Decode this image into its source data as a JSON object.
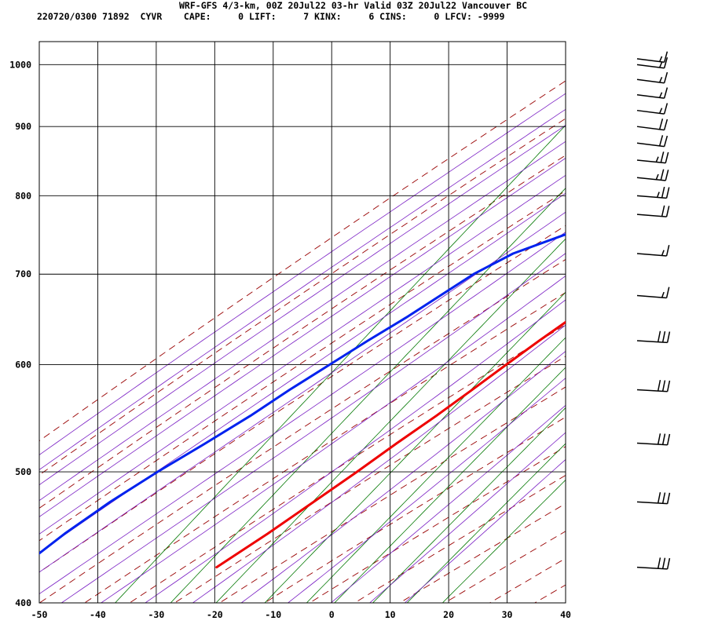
{
  "header": {
    "title": "WRF-GFS 4/3-km, 00Z 20Jul22 03-hr Valid 03Z 20Jul22 Vancouver BC",
    "subtitle": "220720/0300 71892  CYVR    CAPE:     0 LIFT:     7 KINX:     6 CINS:     0 LFCV: -9999"
  },
  "colors": {
    "temperature": "#ee0000",
    "dewpoint": "#0022ee",
    "isotherm_grid": "#000000",
    "dry_adiabat": "#990000",
    "moist_adiabat": "#7a1fc4",
    "mixing_ratio": "#007700",
    "wind_barb": "#000000"
  },
  "chart_data": {
    "type": "line",
    "chart_kind": "skew-T log-p sounding",
    "title": "WRF-GFS 4/3-km, 00Z 20Jul22 03-hr Valid 03Z 20Jul22 Vancouver BC",
    "xlabel": "",
    "ylabel": "",
    "xlim": [
      -50,
      40
    ],
    "ylim_pressure_hPa": [
      1040,
      400
    ],
    "y_scale": "log (pressure, inverted)",
    "x_skewed": true,
    "x_ticks": [
      -50,
      -40,
      -30,
      -20,
      -10,
      0,
      10,
      20,
      30,
      40
    ],
    "y_ticks": [
      400,
      500,
      600,
      700,
      800,
      900,
      1000
    ],
    "grid": true,
    "series": [
      {
        "key": "temperature",
        "x_label": "temperature_C",
        "points": [
          {
            "p": 1010,
            "t": 19.0
          },
          {
            "p": 1003,
            "t": 19.0
          },
          {
            "p": 998,
            "t": 19.3
          },
          {
            "p": 990,
            "t": 19.4
          },
          {
            "p": 970,
            "t": 19.0
          },
          {
            "p": 950,
            "t": 18.2
          },
          {
            "p": 925,
            "t": 17.5
          },
          {
            "p": 900,
            "t": 16.4
          },
          {
            "p": 875,
            "t": 14.7
          },
          {
            "p": 850,
            "t": 12.8
          },
          {
            "p": 825,
            "t": 11.0
          },
          {
            "p": 800,
            "t": 9.7
          },
          {
            "p": 775,
            "t": 8.5
          },
          {
            "p": 750,
            "t": 7.2
          },
          {
            "p": 725,
            "t": 5.8
          },
          {
            "p": 700,
            "t": 4.2
          },
          {
            "p": 675,
            "t": 2.2
          },
          {
            "p": 650,
            "t": 0.1
          },
          {
            "p": 625,
            "t": -2.2
          },
          {
            "p": 600,
            "t": -4.4
          },
          {
            "p": 575,
            "t": -6.6
          },
          {
            "p": 550,
            "t": -9.0
          },
          {
            "p": 525,
            "t": -11.8
          },
          {
            "p": 500,
            "t": -14.5
          },
          {
            "p": 475,
            "t": -17.6
          },
          {
            "p": 450,
            "t": -20.9
          },
          {
            "p": 425,
            "t": -24.8
          }
        ]
      },
      {
        "key": "dewpoint",
        "x_label": "dewpoint_C",
        "points": [
          {
            "p": 1010,
            "t": 13.0
          },
          {
            "p": 1003,
            "t": 12.4
          },
          {
            "p": 998,
            "t": 11.5
          },
          {
            "p": 990,
            "t": 10.8
          },
          {
            "p": 970,
            "t": 10.7
          },
          {
            "p": 950,
            "t": 10.0
          },
          {
            "p": 925,
            "t": 8.7
          },
          {
            "p": 900,
            "t": 7.5
          },
          {
            "p": 875,
            "t": 6.4
          },
          {
            "p": 850,
            "t": 5.4
          },
          {
            "p": 825,
            "t": 3.3
          },
          {
            "p": 810,
            "t": 0.7
          },
          {
            "p": 800,
            "t": -1.9
          },
          {
            "p": 775,
            "t": -7.0
          },
          {
            "p": 750,
            "t": -12.7
          },
          {
            "p": 725,
            "t": -19.2
          },
          {
            "p": 700,
            "t": -23.0
          },
          {
            "p": 675,
            "t": -25.6
          },
          {
            "p": 650,
            "t": -28.3
          },
          {
            "p": 625,
            "t": -31.5
          },
          {
            "p": 600,
            "t": -34.6
          },
          {
            "p": 575,
            "t": -37.8
          },
          {
            "p": 550,
            "t": -40.8
          },
          {
            "p": 525,
            "t": -44.5
          },
          {
            "p": 500,
            "t": -48.6
          },
          {
            "p": 475,
            "t": -52.4
          },
          {
            "p": 450,
            "t": -55.6
          },
          {
            "p": 425,
            "t": -58.2
          }
        ]
      }
    ],
    "wind_barbs": [
      {
        "p": 425,
        "speed_kt": 30,
        "dir_deg": 255
      },
      {
        "p": 475,
        "speed_kt": 30,
        "dir_deg": 255
      },
      {
        "p": 525,
        "speed_kt": 30,
        "dir_deg": 255
      },
      {
        "p": 575,
        "speed_kt": 30,
        "dir_deg": 255
      },
      {
        "p": 625,
        "speed_kt": 30,
        "dir_deg": 255
      },
      {
        "p": 675,
        "speed_kt": 15,
        "dir_deg": 250
      },
      {
        "p": 725,
        "speed_kt": 15,
        "dir_deg": 250
      },
      {
        "p": 775,
        "speed_kt": 20,
        "dir_deg": 250
      },
      {
        "p": 800,
        "speed_kt": 25,
        "dir_deg": 250
      },
      {
        "p": 825,
        "speed_kt": 25,
        "dir_deg": 245
      },
      {
        "p": 850,
        "speed_kt": 25,
        "dir_deg": 245
      },
      {
        "p": 875,
        "speed_kt": 20,
        "dir_deg": 240
      },
      {
        "p": 900,
        "speed_kt": 20,
        "dir_deg": 240
      },
      {
        "p": 925,
        "speed_kt": 15,
        "dir_deg": 240
      },
      {
        "p": 950,
        "speed_kt": 15,
        "dir_deg": 240
      },
      {
        "p": 975,
        "speed_kt": 15,
        "dir_deg": 240
      },
      {
        "p": 1000,
        "speed_kt": 15,
        "dir_deg": 240
      },
      {
        "p": 1010,
        "speed_kt": 15,
        "dir_deg": 240
      }
    ]
  }
}
